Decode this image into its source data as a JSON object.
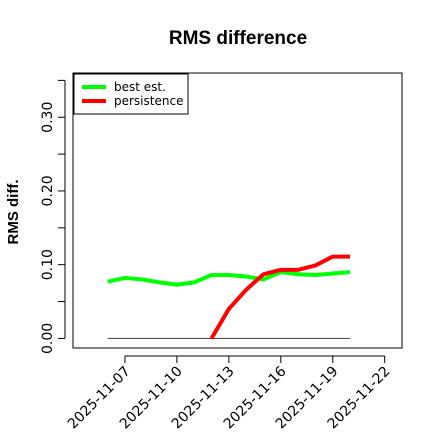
{
  "chart_data": {
    "type": "line",
    "title": "RMS difference",
    "xlabel": "",
    "ylabel": "RMS diff.",
    "x_type": "date",
    "xlim": [
      "2025-11-04",
      "2025-11-23"
    ],
    "ylim": [
      -0.013,
      0.36
    ],
    "x_ticks": [
      "2025-11-07",
      "2025-11-10",
      "2025-11-13",
      "2025-11-16",
      "2025-11-19",
      "2025-11-22"
    ],
    "y_ticks": [
      0.0,
      0.1,
      0.2,
      0.3
    ],
    "y_ticks_minor": [
      0.05,
      0.15,
      0.25,
      0.35
    ],
    "y_tick_labels": [
      "0.00",
      "0.10",
      "0.20",
      "0.30"
    ],
    "grid": false,
    "legend": {
      "position": "top-left",
      "entries": [
        "best est.",
        "persistence"
      ]
    },
    "series": [
      {
        "name": "best est.",
        "color": "#00ff00",
        "x": [
          "2025-11-06",
          "2025-11-07",
          "2025-11-08",
          "2025-11-09",
          "2025-11-10",
          "2025-11-11",
          "2025-11-12",
          "2025-11-13",
          "2025-11-14",
          "2025-11-15",
          "2025-11-16",
          "2025-11-17",
          "2025-11-18",
          "2025-11-19",
          "2025-11-20"
        ],
        "values": [
          0.077,
          0.082,
          0.08,
          0.076,
          0.073,
          0.076,
          0.086,
          0.086,
          0.084,
          0.08,
          0.09,
          0.087,
          0.086,
          0.088,
          0.09
        ]
      },
      {
        "name": "persistence",
        "color": "#ff0000",
        "x": [
          "2025-11-12",
          "2025-11-13",
          "2025-11-14",
          "2025-11-15",
          "2025-11-16",
          "2025-11-17",
          "2025-11-18",
          "2025-11-19",
          "2025-11-20"
        ],
        "values": [
          0.0,
          0.04,
          0.066,
          0.087,
          0.093,
          0.093,
          0.099,
          0.111,
          0.111
        ]
      },
      {
        "name": "zero line",
        "color": "#555555",
        "x": [
          "2025-11-06",
          "2025-11-20"
        ],
        "values": [
          0.0,
          0.0
        ]
      }
    ]
  }
}
